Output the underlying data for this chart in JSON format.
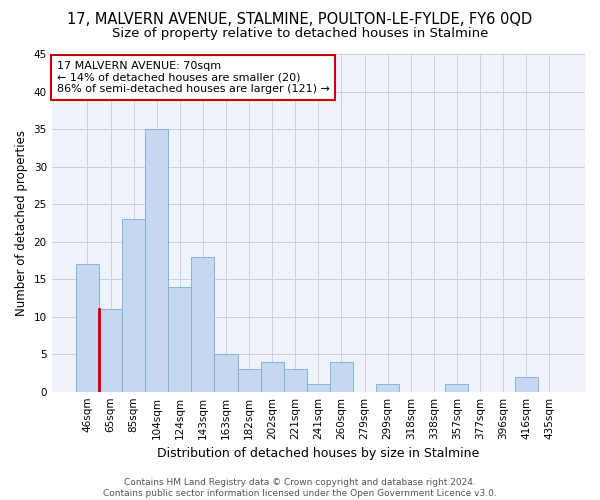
{
  "title": "17, MALVERN AVENUE, STALMINE, POULTON-LE-FYLDE, FY6 0QD",
  "subtitle": "Size of property relative to detached houses in Stalmine",
  "xlabel": "Distribution of detached houses by size in Stalmine",
  "ylabel": "Number of detached properties",
  "categories": [
    "46sqm",
    "65sqm",
    "85sqm",
    "104sqm",
    "124sqm",
    "143sqm",
    "163sqm",
    "182sqm",
    "202sqm",
    "221sqm",
    "241sqm",
    "260sqm",
    "279sqm",
    "299sqm",
    "318sqm",
    "338sqm",
    "357sqm",
    "377sqm",
    "396sqm",
    "416sqm",
    "435sqm"
  ],
  "values": [
    17,
    11,
    23,
    35,
    14,
    18,
    5,
    3,
    4,
    3,
    1,
    4,
    0,
    1,
    0,
    0,
    1,
    0,
    0,
    2,
    0
  ],
  "bar_fill_color": "#c5d8f0",
  "bar_edge_color": "#7aadd4",
  "highlight_index": 1,
  "highlight_line_color": "#cc0000",
  "annotation_text_line1": "17 MALVERN AVENUE: 70sqm",
  "annotation_text_line2": "← 14% of detached houses are smaller (20)",
  "annotation_text_line3": "86% of semi-detached houses are larger (121) →",
  "annotation_box_color": "#ffffff",
  "annotation_box_edge": "#cc0000",
  "ylim": [
    0,
    45
  ],
  "yticks": [
    0,
    5,
    10,
    15,
    20,
    25,
    30,
    35,
    40,
    45
  ],
  "footer": "Contains HM Land Registry data © Crown copyright and database right 2024.\nContains public sector information licensed under the Open Government Licence v3.0.",
  "bg_color": "#eef2fa",
  "grid_color": "#c8d0e0",
  "title_fontsize": 10.5,
  "subtitle_fontsize": 9.5,
  "xlabel_fontsize": 9,
  "ylabel_fontsize": 8.5,
  "tick_fontsize": 7.5,
  "annotation_fontsize": 8,
  "footer_fontsize": 6.5
}
